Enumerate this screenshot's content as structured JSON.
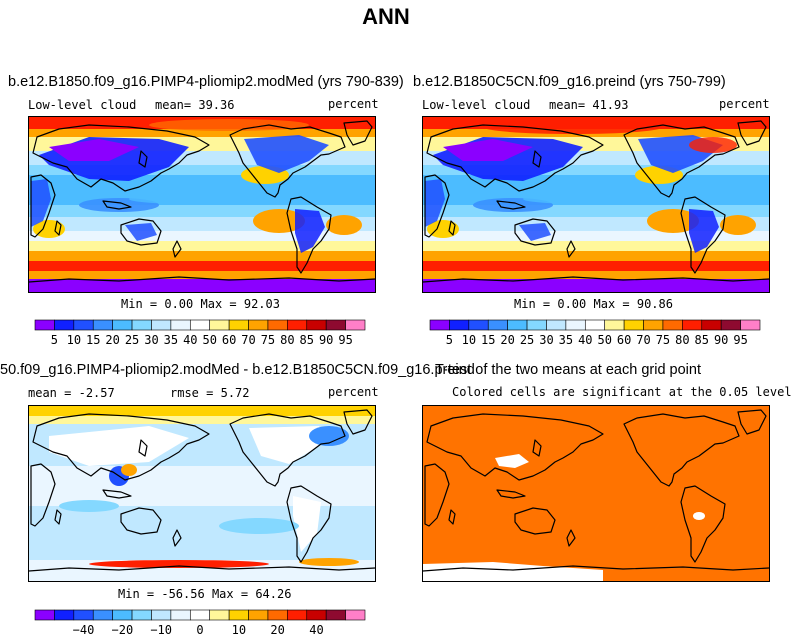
{
  "title": "ANN",
  "colors": {
    "levels": [
      "#8b00ff",
      "#1020ff",
      "#2050ff",
      "#3a90ff",
      "#4cbcff",
      "#84d8ff",
      "#c0e8ff",
      "#eaf6ff",
      "#ffffff",
      "#fff79a",
      "#ffd200",
      "#ffa300",
      "#ff6a00",
      "#ff1f00",
      "#c80000",
      "#8e0a30",
      "#ff7fc8"
    ],
    "sig": "#ff7300"
  },
  "panels": [
    {
      "title": "b.e12.B1850.f09_g16.PIMP4-pliomip2.modMed (yrs 790-839)",
      "left": "Low-level cloud",
      "mean_label": "mean=",
      "mean": "39.36",
      "units": "percent",
      "min_label": "Min =",
      "min": "0.00",
      "max_label": "Max =",
      "max": "92.03"
    },
    {
      "title": "b.e12.B1850C5CN.f09_g16.preind (yrs 750-799)",
      "left": "Low-level cloud",
      "mean_label": "mean=",
      "mean": "41.93",
      "units": "percent",
      "min_label": "Min =",
      "min": "0.00",
      "max_label": "Max =",
      "max": "90.86"
    },
    {
      "title": "50.f09_g16.PIMP4-pliomip2.modMed - b.e12.B1850C5CN.f09_g16.preind",
      "mean_label": "mean =",
      "mean": "-2.57",
      "rmse_label": "rmse =",
      "rmse": "5.72",
      "units": "percent",
      "min_label": "Min =",
      "min": "-56.56",
      "max_label": "Max =",
      "max": "64.26"
    },
    {
      "title": "T-test of the two means at each grid point",
      "subtitle": "Colored cells are significant at the 0.05 level"
    }
  ],
  "chart_data": [
    {
      "type": "heatmap",
      "title": "b.e12.B1850.f09_g16.PIMP4-pliomip2.modMed (yrs 790-839)",
      "units": "percent",
      "mean": 39.36,
      "min": 0.0,
      "max": 92.03,
      "contour_levels": [
        5,
        10,
        15,
        20,
        25,
        30,
        35,
        40,
        50,
        60,
        70,
        75,
        80,
        85,
        90,
        95
      ]
    },
    {
      "type": "heatmap",
      "title": "b.e12.B1850C5CN.f09_g16.preind (yrs 750-799)",
      "units": "percent",
      "mean": 41.93,
      "min": 0.0,
      "max": 90.86,
      "contour_levels": [
        5,
        10,
        15,
        20,
        25,
        30,
        35,
        40,
        50,
        60,
        70,
        75,
        80,
        85,
        90,
        95
      ]
    },
    {
      "type": "heatmap",
      "title": "50.f09_g16.PIMP4-pliomip2.modMed - b.e12.B1850C5CN.f09_g16.preind",
      "units": "percent",
      "mean": -2.57,
      "rmse": 5.72,
      "min": -56.56,
      "max": 64.26,
      "contour_levels": [
        -50,
        -40,
        -30,
        -20,
        -15,
        -10,
        -5,
        0,
        5,
        10,
        15,
        20,
        30,
        40,
        50
      ],
      "labelbar_ticks": [
        -40,
        -20,
        -10,
        0,
        10,
        20,
        40
      ]
    },
    {
      "type": "heatmap",
      "title": "T-test of the two means at each grid point",
      "note": "Colored cells are significant at the 0.05 level"
    }
  ]
}
